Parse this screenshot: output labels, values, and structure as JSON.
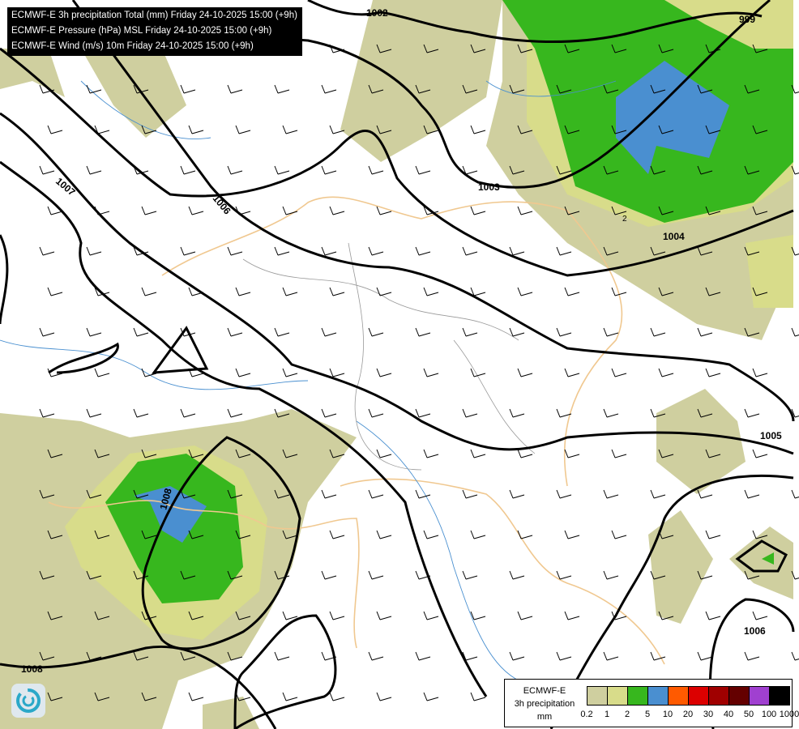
{
  "title_lines": [
    "ECMWF-E 3h precipitation Total (mm) Friday 24-10-2025 15:00 (+9h)",
    "ECMWF-E Pressure (hPa) MSL Friday 24-10-2025 15:00 (+9h)",
    "ECMWF-E Wind (m/s) 10m Friday 24-10-2025 15:00 (+9h)"
  ],
  "isobar_labels": [
    "1002",
    "999",
    "1003",
    "1004",
    "1005",
    "1006",
    "1007",
    "1006",
    "1008",
    "1008",
    "2"
  ],
  "legend": {
    "title_lines": [
      "ECMWF-E",
      "3h precipitation",
      "mm"
    ],
    "ticks": [
      "0.2",
      "1",
      "2",
      "5",
      "10",
      "20",
      "30",
      "40",
      "50",
      "100",
      "1000"
    ],
    "colors": [
      "#cfcf9f",
      "#d8dc8a",
      "#37b71e",
      "#4a8fd0",
      "#ff5a00",
      "#dc0000",
      "#a00000",
      "#640000",
      "#a040d0",
      "#000000"
    ]
  },
  "colors": {
    "coast": "#f0c890",
    "rivers": "#4a90d0",
    "borders": "#999999",
    "isobar": "#000000"
  },
  "logo_icon": "ecmwf-swirl-logo"
}
